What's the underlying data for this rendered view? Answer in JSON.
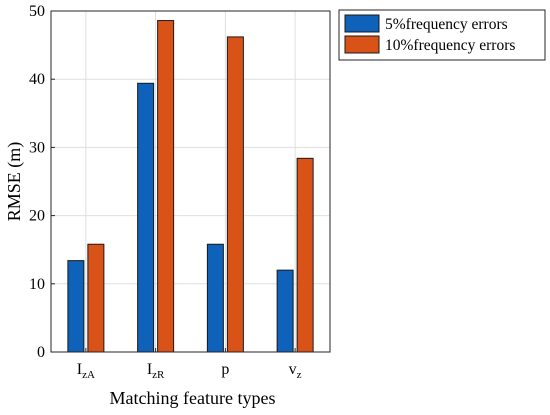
{
  "chart_data": {
    "type": "bar",
    "categories": [
      {
        "main": "I",
        "sub": "zA"
      },
      {
        "main": "I",
        "sub": "zR"
      },
      {
        "main": "p",
        "sub": ""
      },
      {
        "main": "v",
        "sub": "z"
      }
    ],
    "series": [
      {
        "name": "5%frequency errors",
        "values": [
          13.4,
          39.4,
          15.8,
          12.0
        ],
        "color": "#0e62b9"
      },
      {
        "name": "10%frequency errors",
        "values": [
          15.8,
          48.6,
          46.2,
          28.4
        ],
        "color": "#d95319"
      }
    ],
    "xlabel": "Matching feature types",
    "ylabel": "RMSE (m)",
    "ylim": [
      0,
      50
    ],
    "yticks": [
      0,
      10,
      20,
      30,
      40,
      50
    ],
    "grid": true,
    "legend": "outside-top-right"
  }
}
